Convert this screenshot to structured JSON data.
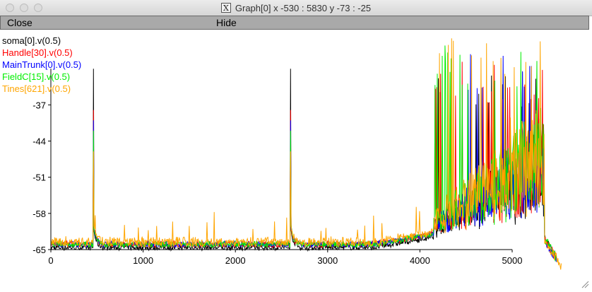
{
  "window": {
    "title": "Graph[0]  x -530 : 5830  y -73 : -25",
    "x_glyph": "X"
  },
  "menu": {
    "close_label": "Close",
    "hide_label": "Hide"
  },
  "chart_data": {
    "type": "line",
    "x_ticks": [
      "0",
      "1000",
      "2000",
      "3000",
      "4000",
      "5000"
    ],
    "y_ticks": [
      "-37",
      "-44",
      "-51",
      "-58",
      "-65"
    ],
    "xlim": [
      -530,
      5830
    ],
    "ylim": [
      -73,
      -25
    ],
    "axis_x_range": [
      0,
      5000
    ],
    "axis_y_range": [
      -65,
      -30
    ],
    "series": [
      {
        "name": "soma[0].v(0.5)",
        "color": "#000000"
      },
      {
        "name": "Handle[30].v(0.5)",
        "color": "#ff0000"
      },
      {
        "name": "MainTrunk[0].v(0.5)",
        "color": "#0000ff"
      },
      {
        "name": "FieldC[15].v(0.5)",
        "color": "#00ee00"
      },
      {
        "name": "Tines[621].v(0.5)",
        "color": "#ffa500"
      }
    ],
    "grid": false,
    "legend_position": "top-left"
  }
}
